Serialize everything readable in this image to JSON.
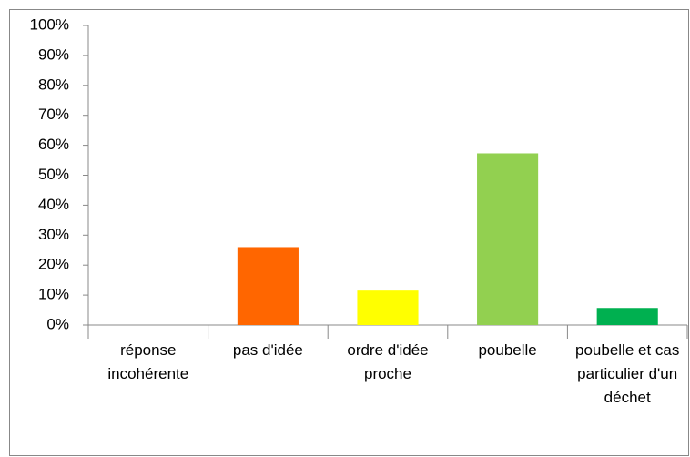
{
  "chart_data": {
    "type": "bar",
    "categories": [
      "réponse incohérente",
      "pas d'idée",
      "ordre d'idée proche",
      "poubelle",
      "poubelle et cas particulier d'un déchet"
    ],
    "values": [
      0,
      26,
      11.5,
      57.3,
      5.7
    ],
    "colors": [
      "#4472c4",
      "#ff6600",
      "#ffff00",
      "#92d050",
      "#00b050"
    ],
    "ylim": [
      0,
      100
    ],
    "yticks": [
      {
        "value": 0,
        "label": "0%"
      },
      {
        "value": 10,
        "label": "10%"
      },
      {
        "value": 20,
        "label": "20%"
      },
      {
        "value": 30,
        "label": "30%"
      },
      {
        "value": 40,
        "label": "40%"
      },
      {
        "value": 50,
        "label": "50%"
      },
      {
        "value": 60,
        "label": "60%"
      },
      {
        "value": 70,
        "label": "70%"
      },
      {
        "value": 80,
        "label": "80%"
      },
      {
        "value": 90,
        "label": "90%"
      },
      {
        "value": 100,
        "label": "100%"
      }
    ],
    "grid": false
  }
}
